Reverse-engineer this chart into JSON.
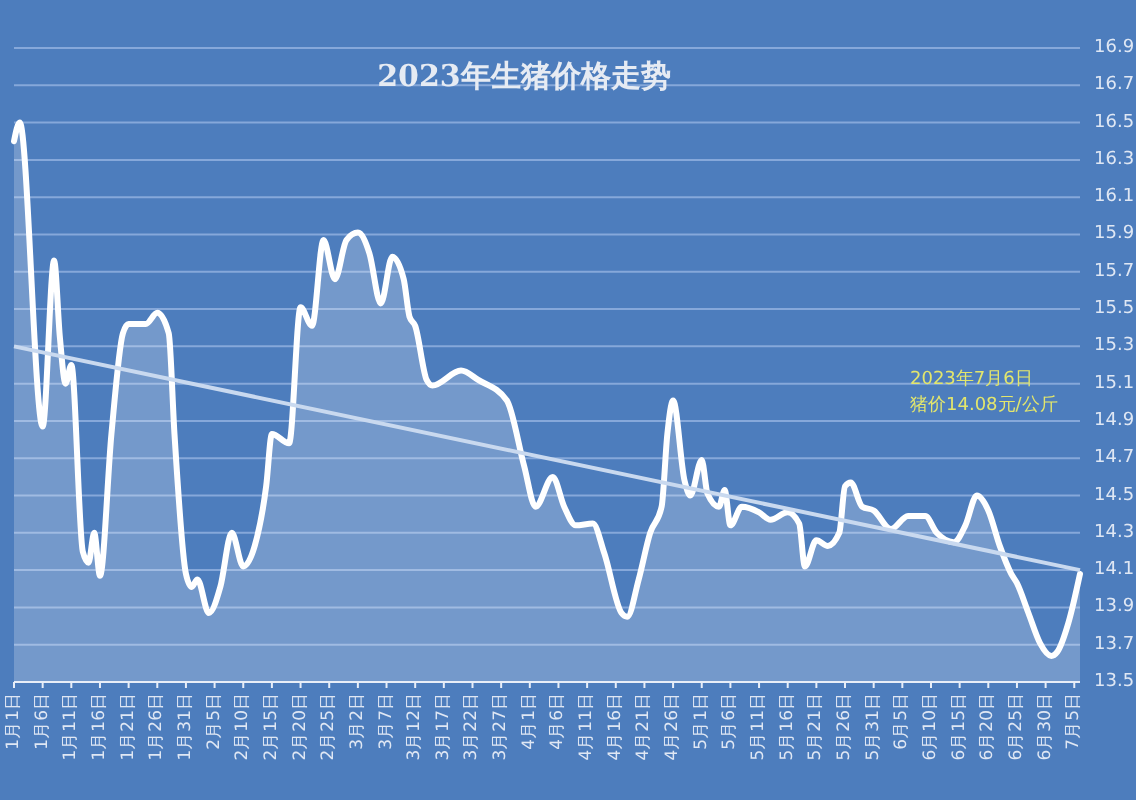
{
  "chart_data": {
    "type": "area",
    "title": "2023年生猪价格走势",
    "annotations": [
      "2023年7月6日",
      "猪价14.08元/公斤"
    ],
    "xlim": [
      "--01-01",
      "--07-06"
    ],
    "xticks": [
      {
        "value": "--01-01",
        "label": "1月1日"
      },
      {
        "value": "--01-06",
        "label": "1月6日"
      },
      {
        "value": "--01-11",
        "label": "1月11日"
      },
      {
        "value": "--01-16",
        "label": "1月16日"
      },
      {
        "value": "--01-21",
        "label": "1月21日"
      },
      {
        "value": "--01-26",
        "label": "1月26日"
      },
      {
        "value": "--01-31",
        "label": "1月31日"
      },
      {
        "value": "--02-05",
        "label": "2月5日"
      },
      {
        "value": "--02-10",
        "label": "2月10日"
      },
      {
        "value": "--02-15",
        "label": "2月15日"
      },
      {
        "value": "--02-20",
        "label": "2月20日"
      },
      {
        "value": "--02-25",
        "label": "2月25日"
      },
      {
        "value": "--03-02",
        "label": "3月2日"
      },
      {
        "value": "--03-07",
        "label": "3月7日"
      },
      {
        "value": "--03-12",
        "label": "3月12日"
      },
      {
        "value": "--03-17",
        "label": "3月17日"
      },
      {
        "value": "--03-22",
        "label": "3月22日"
      },
      {
        "value": "--03-27",
        "label": "3月27日"
      },
      {
        "value": "--04-01",
        "label": "4月1日"
      },
      {
        "value": "--04-06",
        "label": "4月6日"
      },
      {
        "value": "--04-11",
        "label": "4月11日"
      },
      {
        "value": "--04-16",
        "label": "4月16日"
      },
      {
        "value": "--04-21",
        "label": "4月21日"
      },
      {
        "value": "--04-26",
        "label": "4月26日"
      },
      {
        "value": "--05-01",
        "label": "5月1日"
      },
      {
        "value": "--05-06",
        "label": "5月6日"
      },
      {
        "value": "--05-11",
        "label": "5月11日"
      },
      {
        "value": "--05-16",
        "label": "5月16日"
      },
      {
        "value": "--05-21",
        "label": "5月21日"
      },
      {
        "value": "--05-26",
        "label": "5月26日"
      },
      {
        "value": "--05-31",
        "label": "5月31日"
      },
      {
        "value": "--06-05",
        "label": "6月5日"
      },
      {
        "value": "--06-10",
        "label": "6月10日"
      },
      {
        "value": "--06-15",
        "label": "6月15日"
      },
      {
        "value": "--06-20",
        "label": "6月20日"
      },
      {
        "value": "--06-25",
        "label": "6月25日"
      },
      {
        "value": "--06-30",
        "label": "6月30日"
      },
      {
        "value": "--07-05",
        "label": "7月5日"
      }
    ],
    "ylim": [
      13.5,
      16.9
    ],
    "yticks": [
      13.5,
      13.7,
      13.9,
      14.1,
      14.3,
      14.5,
      14.7,
      14.9,
      15.1,
      15.3,
      15.5,
      15.7,
      15.9,
      16.1,
      16.3,
      16.5,
      16.7,
      16.9
    ],
    "grid": "y",
    "series": [
      {
        "color": "#ffffff",
        "x": [
          "--01-01",
          "--01-02",
          "--01-06",
          "--01-08",
          "--01-09",
          "--01-10",
          "--01-11",
          "--01-13",
          "--01-14",
          "--01-15",
          "--01-16",
          "--01-18",
          "--01-20",
          "--01-21",
          "--01-24",
          "--01-26",
          "--01-28",
          "--01-29",
          "--01-31",
          "--02-01",
          "--02-02",
          "--02-04",
          "--02-06",
          "--02-08",
          "--02-10",
          "--02-12",
          "--02-14",
          "--02-15",
          "--02-18",
          "--02-20",
          "--02-22",
          "--02-24",
          "--02-26",
          "--02-28",
          "--03-02",
          "--03-04",
          "--03-06",
          "--03-08",
          "--03-10",
          "--03-11",
          "--03-12",
          "--03-14",
          "--03-15",
          "--03-20",
          "--03-23",
          "--03-28",
          "--03-31",
          "--04-02",
          "--04-05",
          "--04-07",
          "--04-09",
          "--04-12",
          "--04-14",
          "--04-17",
          "--04-18",
          "--04-20",
          "--04-22",
          "--04-24",
          "--04-25",
          "--04-26",
          "--04-28",
          "--04-29",
          "--05-01",
          "--05-02",
          "--05-04",
          "--05-05",
          "--05-06",
          "--05-08",
          "--05-11",
          "--05-13",
          "--05-16",
          "--05-18",
          "--05-19",
          "--05-21",
          "--05-23",
          "--05-25",
          "--05-26",
          "--05-27",
          "--05-29",
          "--05-31",
          "--06-03",
          "--06-06",
          "--06-09",
          "--06-11",
          "--06-14",
          "--06-16",
          "--06-18",
          "--06-20",
          "--06-22",
          "--06-24",
          "--06-25",
          "--06-27",
          "--06-29",
          "--07-01",
          "--07-02",
          "--07-04",
          "--07-06"
        ],
        "values": [
          16.4,
          16.5,
          14.87,
          15.76,
          15.35,
          15.1,
          15.2,
          14.2,
          14.14,
          14.3,
          14.07,
          14.83,
          15.37,
          15.42,
          15.42,
          15.48,
          15.37,
          14.83,
          14.08,
          14.01,
          14.05,
          13.87,
          14.01,
          14.3,
          14.12,
          14.23,
          14.55,
          14.83,
          14.78,
          15.51,
          15.41,
          15.87,
          15.66,
          15.87,
          15.91,
          15.8,
          15.53,
          15.78,
          15.66,
          15.46,
          15.41,
          15.12,
          15.09,
          15.17,
          15.12,
          15.01,
          14.66,
          14.44,
          14.6,
          14.44,
          14.34,
          14.35,
          14.19,
          13.87,
          13.85,
          14.05,
          14.3,
          14.44,
          14.83,
          15.01,
          14.58,
          14.5,
          14.69,
          14.51,
          14.44,
          14.53,
          14.34,
          14.44,
          14.41,
          14.37,
          14.41,
          14.35,
          14.12,
          14.26,
          14.23,
          14.3,
          14.55,
          14.57,
          14.44,
          14.42,
          14.32,
          14.39,
          14.39,
          14.3,
          14.25,
          14.34,
          14.5,
          14.42,
          14.23,
          14.08,
          14.03,
          13.87,
          13.71,
          13.64,
          13.66,
          13.82,
          14.08
        ]
      },
      {
        "type": "line",
        "color": "#c9d9ef",
        "x": [
          "--01-01",
          "--07-06"
        ],
        "values": [
          15.3,
          14.1
        ]
      }
    ]
  }
}
